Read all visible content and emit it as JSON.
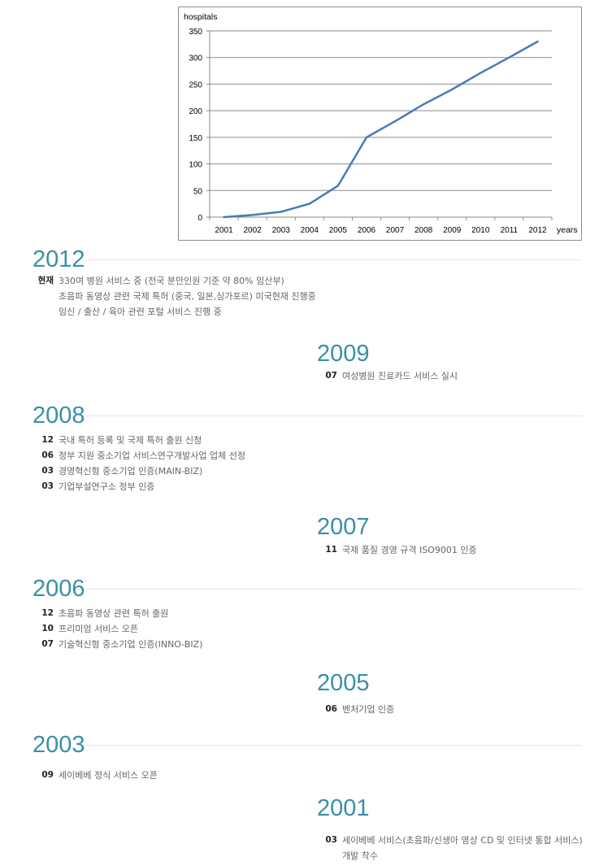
{
  "chart_data": {
    "type": "line",
    "ylabel": "hospitals",
    "xlabel": "years",
    "x": [
      "2001",
      "2002",
      "2003",
      "2004",
      "2005",
      "2006",
      "2007",
      "2008",
      "2009",
      "2010",
      "2011",
      "2012"
    ],
    "series": [
      {
        "values": [
          0,
          4,
          10,
          25,
          59,
          150,
          180,
          212,
          240,
          271,
          300,
          330
        ]
      }
    ],
    "yticks": [
      "350",
      "300",
      "250",
      "200",
      "150",
      "100",
      "50",
      "0"
    ],
    "ylim": [
      0,
      350
    ],
    "grid": "horizontal",
    "legend": "none",
    "line_color": "#4a7ab8"
  },
  "history": {
    "y2012": {
      "year": "2012",
      "now_label": "현재",
      "lines": [
        "330여 병원 서비스 중 (전국 분만인원 기준 약 80% 임산부)",
        "초음파 동영상 관련 국제 특허 (중국, 일본,싱가포르) 미국현재 진행중",
        "임신 / 출산 / 육아 관련 포털 서비스 진행 중"
      ]
    },
    "y2009": {
      "year": "2009",
      "items": [
        {
          "month": "07",
          "text": "여성병원 진료카드 서비스 실시"
        }
      ]
    },
    "y2008": {
      "year": "2008",
      "items": [
        {
          "month": "12",
          "text": "국내 특허 등록 및 국제 특허 출원 신청"
        },
        {
          "month": "06",
          "text": "정부 지원 중소기업 서비스연구개발사업 업체 선정"
        },
        {
          "month": "03",
          "text": "경영혁신형 중소기업 인증(MAIN-BIZ)"
        },
        {
          "month": "03",
          "text": "기업부설연구소 정부 인증"
        }
      ]
    },
    "y2007": {
      "year": "2007",
      "items": [
        {
          "month": "11",
          "text": "국제 품질 경영 규격 ISO9001 인증"
        }
      ]
    },
    "y2006": {
      "year": "2006",
      "items": [
        {
          "month": "12",
          "text": "초음파 동영상 관련 특허 출원"
        },
        {
          "month": "10",
          "text": "프리미엄 서비스 오픈"
        },
        {
          "month": "07",
          "text": "기술혁신형 중소기업 인증(INNO-BIZ)"
        }
      ]
    },
    "y2005": {
      "year": "2005",
      "items": [
        {
          "month": "06",
          "text": "벤처기업 인증"
        }
      ]
    },
    "y2003": {
      "year": "2003",
      "items": [
        {
          "month": "09",
          "text": "세이베베 정식 서비스 오픈"
        }
      ]
    },
    "y2001": {
      "year": "2001",
      "items": [
        {
          "month": "03",
          "text": "세이베베 서비스(초음파/신생아 영상 CD 및 인터넷 통합 서비스)",
          "text2": "개발 착수"
        }
      ]
    }
  }
}
